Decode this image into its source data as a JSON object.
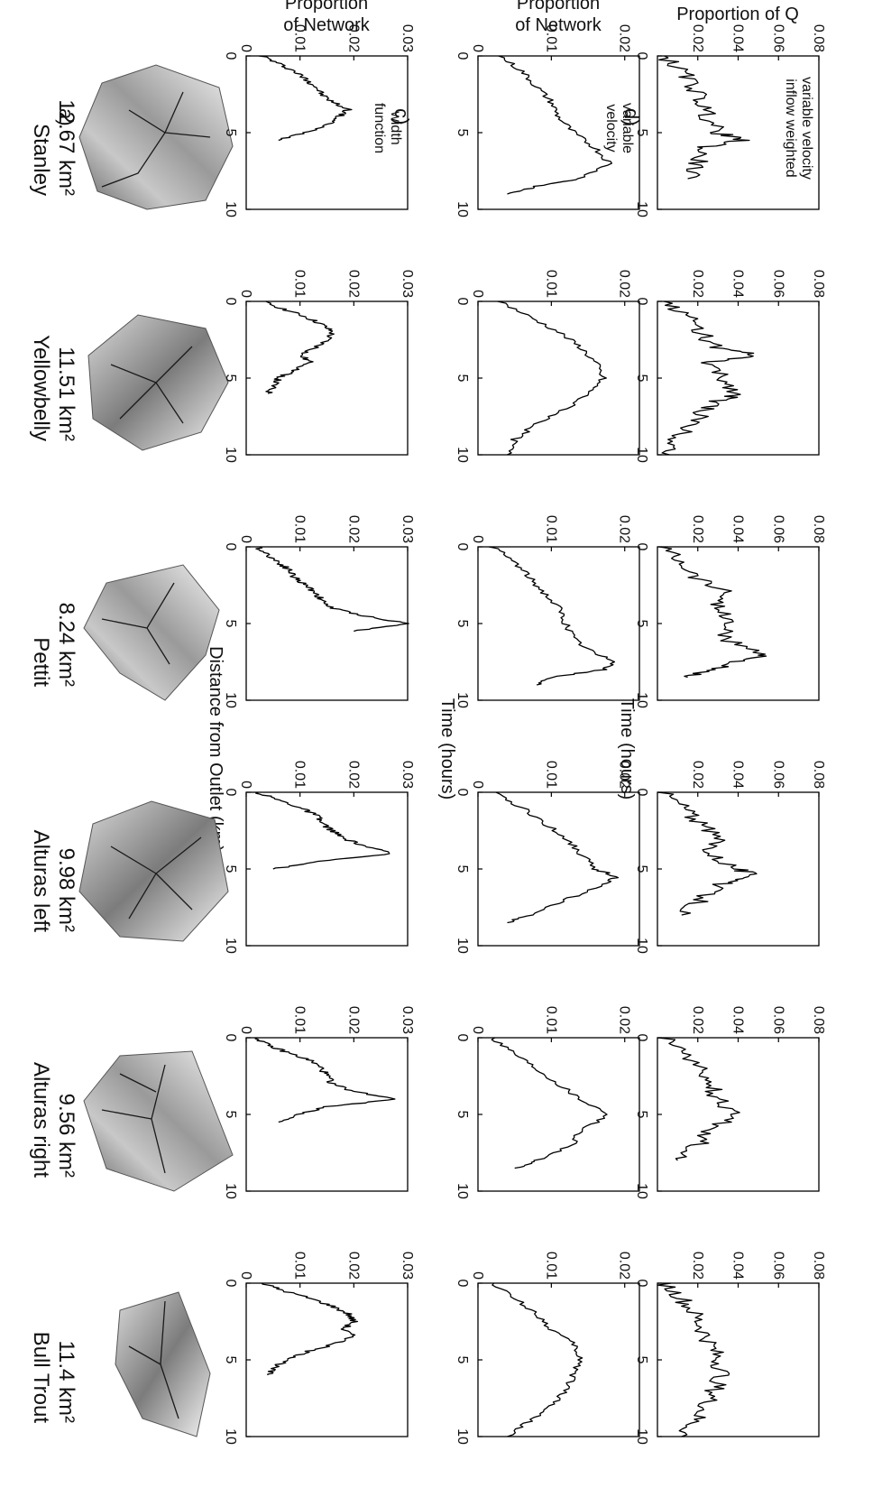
{
  "figure": {
    "row_letters": [
      "a)",
      "b)",
      "c)",
      "d)"
    ],
    "row_ylabels": [
      {
        "lines": [
          "Proportion",
          "of Network"
        ]
      },
      {
        "lines": [
          "Proportion",
          "of Network"
        ]
      },
      {
        "lines": [
          "Proportion of Q"
        ]
      }
    ],
    "x_axis_labels": [
      "Distance from Outlet (km)",
      "Time (hours)",
      "Time (hours)"
    ],
    "annotations": [
      [
        "width",
        "function"
      ],
      [
        "variable",
        "velocity"
      ],
      [
        "variable velocity",
        "inflow weighted"
      ]
    ],
    "basins": [
      {
        "name": "Stanley",
        "area": "12.67 km²"
      },
      {
        "name": "Yellowbelly",
        "area": "11.51 km²"
      },
      {
        "name": "Pettit",
        "area": "8.24 km²"
      },
      {
        "name": "Alturas left",
        "area": "9.98 km²"
      },
      {
        "name": "Alturas right",
        "area": "9.56 km²"
      },
      {
        "name": "Bull Trout",
        "area": "11.4 km²"
      }
    ]
  },
  "chart_data": [
    {
      "type": "line",
      "panel": "b)",
      "xlabel": "Distance from Outlet (km)",
      "ylabel": "Proportion of Network",
      "annotation": "width function",
      "xlim": [
        0,
        10
      ],
      "ylim": [
        0,
        0.03
      ],
      "xticks": [
        "0",
        "5",
        "10"
      ],
      "yticks": [
        "0",
        "0.01",
        "0.02",
        "0.03"
      ],
      "series": [
        {
          "name": "Stanley",
          "x": [
            0,
            0.5,
            1,
            1.5,
            2,
            2.5,
            3,
            3.5,
            4,
            4.5,
            5,
            5.5
          ],
          "values": [
            0.003,
            0.006,
            0.009,
            0.011,
            0.013,
            0.014,
            0.016,
            0.019,
            0.017,
            0.015,
            0.011,
            0.006
          ]
        },
        {
          "name": "Yellowbelly",
          "x": [
            0,
            0.5,
            1,
            1.5,
            2,
            2.5,
            3,
            3.5,
            4,
            4.5,
            5,
            5.5,
            6
          ],
          "values": [
            0.003,
            0.007,
            0.011,
            0.014,
            0.016,
            0.015,
            0.013,
            0.01,
            0.012,
            0.009,
            0.006,
            0.005,
            0.004
          ]
        },
        {
          "name": "Pettit",
          "x": [
            0,
            0.5,
            1,
            1.5,
            2,
            2.5,
            3,
            3.5,
            4,
            4.5,
            5,
            5.5
          ],
          "values": [
            0.002,
            0.004,
            0.006,
            0.008,
            0.009,
            0.011,
            0.013,
            0.014,
            0.016,
            0.022,
            0.03,
            0.02
          ]
        },
        {
          "name": "Alturas left",
          "x": [
            0,
            0.5,
            1,
            1.5,
            2,
            2.5,
            3,
            3.5,
            4,
            4.5,
            5
          ],
          "values": [
            0.002,
            0.006,
            0.01,
            0.013,
            0.014,
            0.016,
            0.018,
            0.022,
            0.027,
            0.014,
            0.005
          ]
        },
        {
          "name": "Alturas right",
          "x": [
            0,
            0.5,
            1,
            1.5,
            2,
            2.5,
            3,
            3.5,
            4,
            4.5,
            5,
            5.5
          ],
          "values": [
            0.002,
            0.004,
            0.008,
            0.012,
            0.014,
            0.015,
            0.016,
            0.02,
            0.028,
            0.015,
            0.01,
            0.006
          ]
        },
        {
          "name": "Bull Trout",
          "x": [
            0,
            0.5,
            1,
            1.5,
            2,
            2.5,
            3,
            3.5,
            4,
            4.5,
            5,
            5.5,
            6
          ],
          "values": [
            0.003,
            0.007,
            0.012,
            0.016,
            0.019,
            0.02,
            0.018,
            0.02,
            0.016,
            0.011,
            0.008,
            0.005,
            0.004
          ]
        }
      ]
    },
    {
      "type": "line",
      "panel": "c)",
      "xlabel": "Time (hours)",
      "ylabel": "Proportion of Network",
      "annotation": "variable velocity",
      "xlim": [
        0,
        10
      ],
      "ylim": [
        0,
        0.022
      ],
      "xticks": [
        "0",
        "5",
        "10"
      ],
      "yticks": [
        "0",
        "0.01",
        "0.02"
      ],
      "series": [
        {
          "name": "Stanley",
          "x": [
            0,
            1,
            2,
            3,
            4,
            5,
            6,
            7,
            8,
            8.5,
            9
          ],
          "values": [
            0.003,
            0.006,
            0.008,
            0.01,
            0.011,
            0.013,
            0.016,
            0.018,
            0.014,
            0.008,
            0.004
          ]
        },
        {
          "name": "Yellowbelly",
          "x": [
            0,
            1,
            2,
            3,
            4,
            5,
            6,
            7,
            8,
            9,
            10
          ],
          "values": [
            0.003,
            0.007,
            0.011,
            0.014,
            0.016,
            0.017,
            0.015,
            0.012,
            0.008,
            0.005,
            0.004
          ]
        },
        {
          "name": "Pettit",
          "x": [
            0,
            1,
            2,
            3,
            4,
            5,
            6,
            7,
            7.5,
            8,
            8.5,
            9
          ],
          "values": [
            0.002,
            0.005,
            0.007,
            0.009,
            0.011,
            0.012,
            0.013,
            0.016,
            0.019,
            0.017,
            0.01,
            0.008
          ]
        },
        {
          "name": "Alturas left",
          "x": [
            0,
            1,
            2,
            3,
            4,
            5,
            5.5,
            6,
            7,
            8,
            8.5
          ],
          "values": [
            0.002,
            0.006,
            0.009,
            0.012,
            0.014,
            0.016,
            0.019,
            0.017,
            0.012,
            0.007,
            0.004
          ]
        },
        {
          "name": "Alturas right",
          "x": [
            0,
            1,
            2,
            3,
            4,
            5,
            6,
            7,
            8,
            8.5
          ],
          "values": [
            0.002,
            0.005,
            0.008,
            0.011,
            0.014,
            0.018,
            0.014,
            0.013,
            0.008,
            0.005
          ]
        },
        {
          "name": "Bull Trout",
          "x": [
            0,
            1,
            2,
            3,
            4,
            5,
            6,
            7,
            8,
            9,
            10
          ],
          "values": [
            0.002,
            0.005,
            0.008,
            0.01,
            0.013,
            0.014,
            0.013,
            0.012,
            0.01,
            0.007,
            0.004
          ]
        }
      ]
    },
    {
      "type": "line",
      "panel": "d)",
      "xlabel": "Time (hours)",
      "ylabel": "Proportion of Q",
      "annotation": "variable velocity inflow weighted",
      "xlim": [
        0,
        10
      ],
      "ylim": [
        0,
        0.08
      ],
      "xticks": [
        "0",
        "5",
        "10"
      ],
      "yticks": [
        "0.02",
        "0.04",
        "0.06",
        "0.08"
      ],
      "series": [
        {
          "name": "Stanley",
          "x": [
            0,
            1,
            2,
            3,
            4,
            5,
            5.5,
            6,
            7,
            8
          ],
          "values": [
            0.003,
            0.012,
            0.018,
            0.022,
            0.025,
            0.03,
            0.041,
            0.022,
            0.02,
            0.015
          ]
        },
        {
          "name": "Yellowbelly",
          "x": [
            0,
            1,
            2,
            3,
            3.5,
            4,
            5,
            6,
            6.5,
            7,
            8,
            9,
            10
          ],
          "values": [
            0.004,
            0.015,
            0.022,
            0.028,
            0.048,
            0.025,
            0.032,
            0.04,
            0.03,
            0.024,
            0.018,
            0.01,
            0.006
          ]
        },
        {
          "name": "Pettit",
          "x": [
            0,
            1,
            2,
            3,
            4,
            5,
            6,
            7,
            7.5,
            8,
            8.5
          ],
          "values": [
            0.003,
            0.013,
            0.02,
            0.035,
            0.03,
            0.036,
            0.032,
            0.055,
            0.04,
            0.025,
            0.015
          ]
        },
        {
          "name": "Alturas left",
          "x": [
            0,
            1,
            2,
            3,
            4,
            5,
            5.5,
            6,
            7,
            8
          ],
          "values": [
            0.003,
            0.014,
            0.02,
            0.03,
            0.026,
            0.04,
            0.049,
            0.03,
            0.022,
            0.012
          ]
        },
        {
          "name": "Alturas right",
          "x": [
            0,
            1,
            2,
            3,
            4,
            5,
            6,
            7,
            8
          ],
          "values": [
            0.003,
            0.014,
            0.02,
            0.026,
            0.03,
            0.038,
            0.026,
            0.02,
            0.01
          ]
        },
        {
          "name": "Bull Trout",
          "x": [
            0,
            1,
            2,
            3,
            4,
            5,
            6,
            7,
            8,
            9,
            10
          ],
          "values": [
            0.003,
            0.012,
            0.018,
            0.022,
            0.026,
            0.03,
            0.032,
            0.028,
            0.024,
            0.018,
            0.012
          ]
        }
      ]
    }
  ]
}
